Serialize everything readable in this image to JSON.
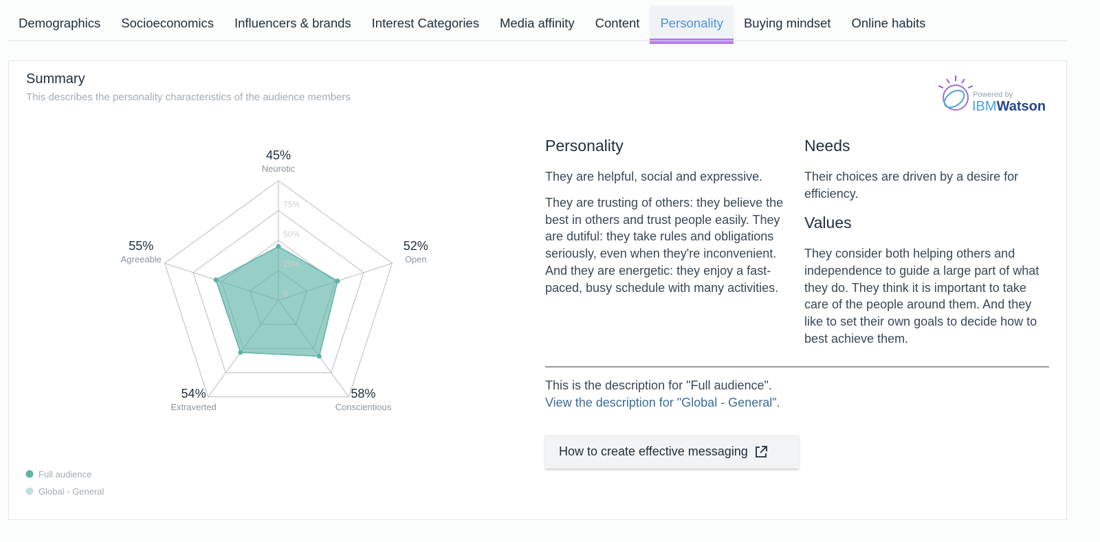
{
  "tabs": [
    {
      "label": "Demographics"
    },
    {
      "label": "Socioeconomics"
    },
    {
      "label": "Influencers & brands"
    },
    {
      "label": "Interest Categories"
    },
    {
      "label": "Media affinity"
    },
    {
      "label": "Content"
    },
    {
      "label": "Personality",
      "active": true
    },
    {
      "label": "Buying mindset"
    },
    {
      "label": "Online habits"
    }
  ],
  "summary": {
    "title": "Summary",
    "subtitle": "This describes the personality characteristics of the audience members"
  },
  "logo": {
    "caption": "Powered by",
    "brand_prefix": "IBM",
    "brand_name": "Watson"
  },
  "chart_data": {
    "type": "radar",
    "categories": [
      "Neurotic",
      "Open",
      "Conscientious",
      "Extraverted",
      "Agreeable"
    ],
    "series": [
      {
        "name": "Full audience",
        "color": "#5fb3a6",
        "values": [
          45,
          52,
          58,
          54,
          55
        ],
        "value_labels": [
          "45%",
          "52%",
          "58%",
          "54%",
          "55%"
        ]
      },
      {
        "name": "Global - General",
        "color": "#bfe0dc"
      }
    ],
    "rlim": [
      0,
      100
    ],
    "rticks": [
      0,
      {
        "value": 25,
        "label": "25%"
      },
      {
        "value": 50,
        "label": "50%"
      },
      {
        "value": 75,
        "label": "75%"
      }
    ],
    "grid": true
  },
  "personality": {
    "heading": "Personality",
    "paragraphs": [
      "They are helpful, social and expressive.",
      "They are trusting of others: they believe the best in others and trust people easily. They are dutiful: they take rules and obligations seriously, even when they're inconvenient. And they are energetic: they enjoy a fast-paced, busy schedule with many activities."
    ]
  },
  "needs": {
    "heading": "Needs",
    "text": "Their choices are driven by a desire for efficiency."
  },
  "values": {
    "heading": "Values",
    "text": "They consider both helping others and independence to guide a large part of what they do. They think it is important to take care of the people around them. And they like to set their own goals to decide how to best achieve them."
  },
  "footer": {
    "description": "This is the description for \"Full audience\".",
    "link": "View the description for \"Global - General\"."
  },
  "button": {
    "label": "How to create effective messaging"
  }
}
